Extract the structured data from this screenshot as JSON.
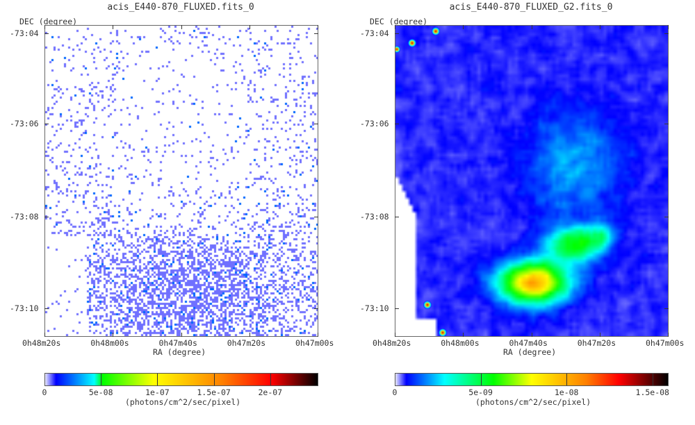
{
  "chart_data": [
    {
      "type": "heatmap",
      "title": "acis_E440-870_FLUXED.fits_0",
      "xlabel": "RA (degree)",
      "ylabel": "DEC (degree)",
      "xticks": [
        "0h48m20s",
        "0h48m00s",
        "0h47m40s",
        "0h47m20s",
        "0h47m00s"
      ],
      "yticks": [
        "-73:04",
        "-73:06",
        "-73:08",
        "-73:10"
      ],
      "colorbar": {
        "label": "(photons/cm^2/sec/pixel)",
        "ticks": [
          "0",
          "5e-08",
          "1e-07",
          "1.5e-07",
          "2e-07"
        ],
        "tick_values": [
          0,
          5e-08,
          1e-07,
          1.5e-07,
          2e-07
        ],
        "range": [
          0,
          2.42e-07
        ],
        "colormap": [
          "#ffffff",
          "#0000ff",
          "#00ffff",
          "#00ff00",
          "#ffff00",
          "#ff8000",
          "#ff0000",
          "#000000"
        ]
      }
    },
    {
      "type": "heatmap",
      "title": "acis_E440-870_FLUXED_G2.fits_0",
      "xlabel": "RA (degree)",
      "ylabel": "DEC (degree)",
      "xticks": [
        "0h48m20s",
        "0h48m00s",
        "0h47m40s",
        "0h47m20s",
        "0h47m00s"
      ],
      "yticks": [
        "-73:04",
        "-73:06",
        "-73:08",
        "-73:10"
      ],
      "colorbar": {
        "label": "(photons/cm^2/sec/pixel)",
        "ticks": [
          "0",
          "5e-09",
          "1e-08",
          "1.5e-08"
        ],
        "tick_values": [
          0,
          5e-09,
          1e-08,
          1.5e-08
        ],
        "range": [
          0,
          1.59e-08
        ],
        "colormap": [
          "#ffffff",
          "#0000ff",
          "#00ffff",
          "#00ff00",
          "#ffff00",
          "#ff8000",
          "#ff0000",
          "#000000"
        ]
      }
    }
  ]
}
